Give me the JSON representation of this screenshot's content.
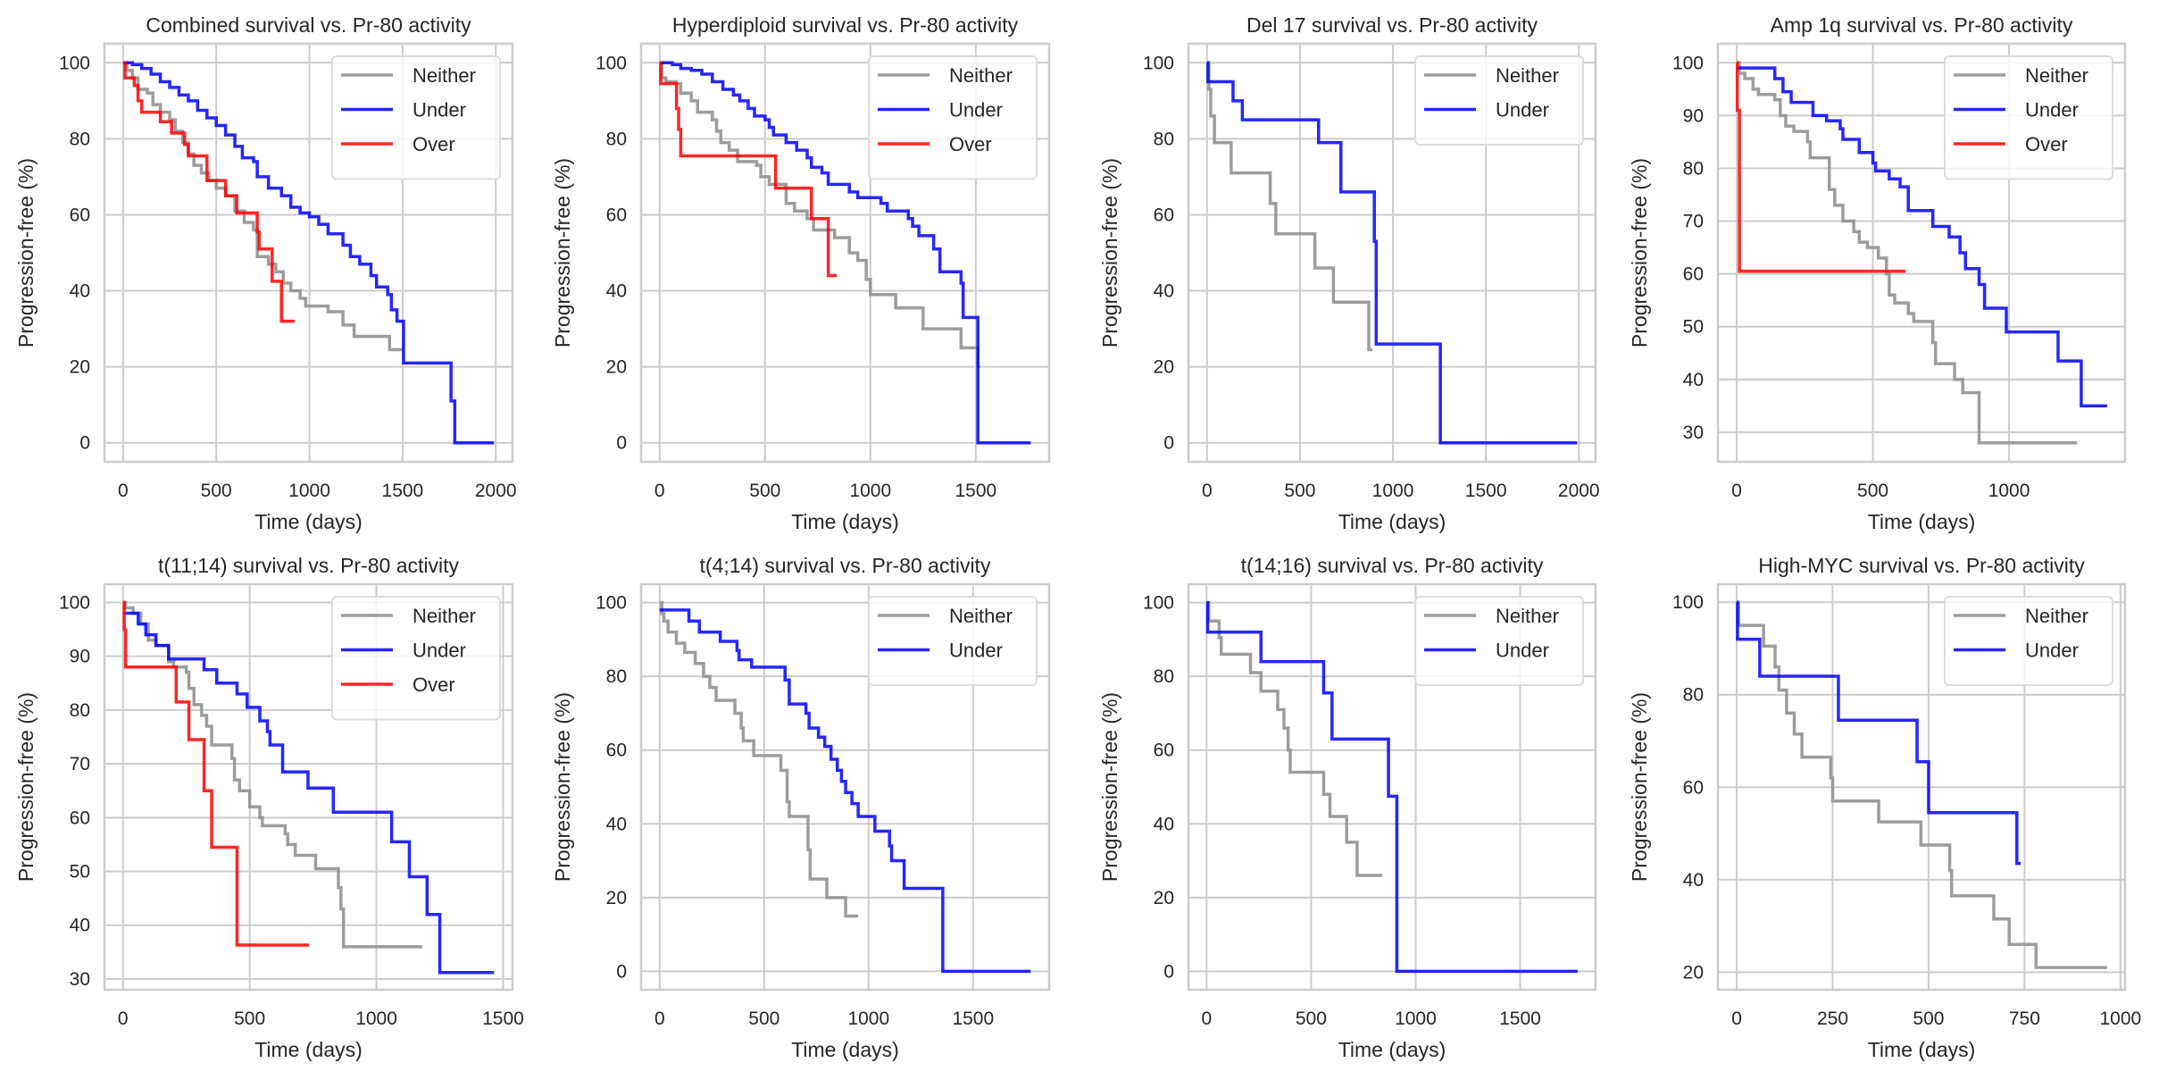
{
  "colors": {
    "Neither": "#8c8c8c",
    "Under": "#0000ff",
    "Over": "#ff0000"
  },
  "chart_data": [
    {
      "type": "line",
      "step": true,
      "legend": "top-right",
      "title": "Combined survival vs. Pr-80 activity",
      "xlabel": "Time (days)",
      "ylabel": "Progression-free (%)",
      "xlim": [
        -100,
        2090
      ],
      "ylim": [
        -5,
        105
      ],
      "xticks": [
        0,
        500,
        1000,
        1500,
        2000
      ],
      "yticks": [
        0,
        20,
        40,
        60,
        80,
        100
      ],
      "series": [
        {
          "name": "Neither",
          "t": [
            0,
            20,
            50,
            80,
            130,
            160,
            200,
            250,
            280,
            320,
            350,
            380,
            420,
            460,
            500,
            550,
            600,
            650,
            700,
            720,
            780,
            820,
            860,
            900,
            950,
            980,
            1100,
            1180,
            1240,
            1430,
            1500
          ],
          "s": [
            100,
            98,
            96,
            93,
            92,
            89,
            87,
            85,
            82,
            79,
            76,
            73,
            71,
            69,
            67,
            65,
            61,
            58,
            56,
            49,
            47,
            45,
            42,
            40,
            38,
            36,
            34.5,
            31,
            28,
            24.5,
            24.5
          ]
        },
        {
          "name": "Under",
          "t": [
            0,
            50,
            100,
            150,
            200,
            250,
            300,
            350,
            400,
            450,
            500,
            550,
            600,
            640,
            700,
            720,
            780,
            850,
            900,
            950,
            1000,
            1050,
            1100,
            1180,
            1220,
            1270,
            1330,
            1360,
            1420,
            1440,
            1470,
            1505,
            1760,
            1780,
            1990
          ],
          "s": [
            100,
            99.5,
            98.5,
            97,
            95,
            93.5,
            91.5,
            90,
            87.5,
            85.5,
            83.5,
            81,
            78,
            75,
            74,
            70,
            67,
            65,
            62,
            60.5,
            59.5,
            57.5,
            55,
            52,
            49,
            47,
            44,
            41,
            39,
            35,
            32,
            21,
            11,
            0,
            0
          ]
        },
        {
          "name": "Over",
          "t": [
            0,
            10,
            60,
            80,
            100,
            200,
            260,
            330,
            350,
            450,
            550,
            610,
            720,
            730,
            800,
            850,
            920
          ],
          "s": [
            100,
            96,
            94,
            90,
            87,
            84.5,
            81.5,
            78.5,
            75.5,
            69,
            65,
            60.5,
            55.5,
            51,
            42.5,
            32,
            32
          ]
        }
      ]
    },
    {
      "type": "line",
      "step": true,
      "legend": "top-right",
      "title": "Hyperdiploid survival vs. Pr-80 activity",
      "xlabel": "Time (days)",
      "ylabel": "Progression-free (%)",
      "xlim": [
        -88,
        1848
      ],
      "ylim": [
        -5,
        105
      ],
      "xticks": [
        0,
        500,
        1000,
        1500
      ],
      "yticks": [
        0,
        20,
        40,
        60,
        80,
        100
      ],
      "series": [
        {
          "name": "Neither",
          "t": [
            0,
            10,
            30,
            80,
            100,
            150,
            180,
            250,
            270,
            290,
            330,
            370,
            460,
            480,
            520,
            600,
            640,
            700,
            730,
            830,
            900,
            940,
            980,
            1000,
            1120,
            1250,
            1430,
            1510,
            1520
          ],
          "s": [
            100,
            96,
            95,
            94.5,
            92,
            90,
            87,
            85,
            82,
            79,
            77,
            74,
            73,
            70,
            68,
            63,
            61,
            59,
            56,
            54,
            50,
            48,
            43,
            39,
            35.5,
            30,
            25,
            20,
            20
          ]
        },
        {
          "name": "Under",
          "t": [
            0,
            60,
            100,
            150,
            200,
            250,
            300,
            350,
            380,
            420,
            450,
            500,
            520,
            540,
            600,
            650,
            700,
            720,
            770,
            800,
            900,
            940,
            1050,
            1080,
            1180,
            1200,
            1230,
            1300,
            1330,
            1430,
            1440,
            1510,
            1760
          ],
          "s": [
            100,
            99.5,
            98.5,
            98,
            97,
            95,
            93,
            91.5,
            90,
            88,
            86,
            85,
            83,
            81,
            79,
            77,
            75,
            72.5,
            71,
            68,
            66,
            64.5,
            63,
            61,
            59,
            57,
            54.5,
            51,
            45,
            42,
            33,
            0,
            0
          ]
        },
        {
          "name": "Over",
          "t": [
            0,
            5,
            80,
            90,
            100,
            550,
            720,
            800,
            840
          ],
          "s": [
            100,
            94.5,
            88,
            82.5,
            75.5,
            67,
            59,
            44,
            44
          ]
        }
      ]
    },
    {
      "type": "line",
      "step": true,
      "legend": "top-right",
      "title": "Del 17 survival vs. Pr-80 activity",
      "xlabel": "Time (days)",
      "ylabel": "Progression-free (%)",
      "xlim": [
        -100,
        2090
      ],
      "ylim": [
        -5,
        105
      ],
      "xticks": [
        0,
        500,
        1000,
        1500,
        2000
      ],
      "yticks": [
        0,
        20,
        40,
        60,
        80,
        100
      ],
      "series": [
        {
          "name": "Neither",
          "t": [
            0,
            10,
            20,
            40,
            130,
            340,
            370,
            580,
            680,
            870,
            890
          ],
          "s": [
            100,
            93,
            86,
            79,
            71,
            63,
            55,
            46,
            37,
            24.5,
            24.5
          ]
        },
        {
          "name": "Under",
          "t": [
            0,
            5,
            140,
            190,
            600,
            720,
            900,
            910,
            1255,
            1990
          ],
          "s": [
            100,
            95,
            90,
            85,
            79,
            66,
            53,
            26,
            0,
            0
          ]
        }
      ]
    },
    {
      "type": "line",
      "step": true,
      "legend": "top-right",
      "title": "Amp 1q survival vs. Pr-80 activity",
      "xlabel": "Time (days)",
      "ylabel": "Progression-free (%)",
      "xlim": [
        -69,
        1426
      ],
      "ylim": [
        24.4,
        103.6
      ],
      "xticks": [
        0,
        500,
        1000
      ],
      "yticks": [
        30,
        40,
        50,
        60,
        70,
        80,
        90,
        100
      ],
      "series": [
        {
          "name": "Neither",
          "t": [
            0,
            10,
            30,
            60,
            80,
            140,
            160,
            180,
            210,
            260,
            270,
            340,
            360,
            390,
            430,
            450,
            480,
            520,
            550,
            560,
            580,
            630,
            650,
            720,
            730,
            800,
            830,
            890,
            1250
          ],
          "s": [
            100,
            98,
            97,
            95,
            94,
            93,
            90,
            88,
            87,
            85,
            82,
            76,
            73,
            70,
            68,
            66,
            65,
            63,
            60,
            56,
            54.5,
            52.5,
            51,
            47,
            43,
            40,
            37.5,
            28,
            28
          ]
        },
        {
          "name": "Under",
          "t": [
            0,
            140,
            170,
            200,
            280,
            330,
            380,
            390,
            450,
            500,
            510,
            560,
            600,
            630,
            720,
            780,
            820,
            840,
            890,
            910,
            990,
            1180,
            1265,
            1360
          ],
          "s": [
            99,
            97,
            94.5,
            92.5,
            90,
            89,
            87.5,
            85.5,
            83,
            81,
            79.5,
            78,
            76.5,
            72,
            69,
            67,
            64,
            61,
            58,
            53.5,
            49,
            43.5,
            35,
            35
          ]
        },
        {
          "name": "Over",
          "t": [
            0,
            2,
            10,
            620
          ],
          "s": [
            100,
            91,
            60.5,
            60.5
          ]
        }
      ]
    },
    {
      "type": "line",
      "step": true,
      "legend": "top-right",
      "title": "t(11;14) survival vs. Pr-80 activity",
      "xlabel": "Time (days)",
      "ylabel": "Progression-free (%)",
      "xlim": [
        -73,
        1537
      ],
      "ylim": [
        28,
        103.4
      ],
      "xticks": [
        0,
        500,
        1000,
        1500
      ],
      "yticks": [
        30,
        40,
        50,
        60,
        70,
        80,
        90,
        100
      ],
      "series": [
        {
          "name": "Neither",
          "t": [
            0,
            10,
            40,
            70,
            100,
            130,
            180,
            200,
            250,
            260,
            280,
            310,
            330,
            350,
            430,
            440,
            460,
            500,
            540,
            550,
            640,
            650,
            680,
            760,
            850,
            860,
            870,
            1180
          ],
          "s": [
            100,
            99,
            98,
            96,
            93,
            92,
            89,
            88,
            87,
            84,
            81,
            79,
            77,
            73.5,
            71,
            67,
            65,
            62,
            60,
            58.5,
            57,
            55,
            53,
            50.5,
            47,
            43,
            36,
            36
          ]
        },
        {
          "name": "Under",
          "t": [
            0,
            60,
            90,
            130,
            180,
            320,
            370,
            450,
            490,
            540,
            570,
            580,
            630,
            730,
            830,
            1060,
            1130,
            1200,
            1250,
            1464
          ],
          "s": [
            98,
            96,
            94,
            92,
            89.5,
            87.5,
            85,
            83,
            80.5,
            78,
            76,
            73.5,
            68.5,
            65.5,
            61,
            55.5,
            49,
            42,
            31.2,
            31.2
          ]
        },
        {
          "name": "Over",
          "t": [
            0,
            5,
            10,
            210,
            260,
            320,
            350,
            450,
            735
          ],
          "s": [
            100,
            95,
            88,
            81.5,
            74.5,
            65,
            54.5,
            36.3,
            36.3
          ]
        }
      ]
    },
    {
      "type": "line",
      "step": true,
      "legend": "top-right",
      "title": "t(4;14) survival vs. Pr-80 activity",
      "xlabel": "Time (days)",
      "ylabel": "Progression-free (%)",
      "xlim": [
        -89,
        1864
      ],
      "ylim": [
        -5,
        105
      ],
      "xticks": [
        0,
        500,
        1000,
        1500
      ],
      "yticks": [
        0,
        20,
        40,
        60,
        80,
        100
      ],
      "series": [
        {
          "name": "Neither",
          "t": [
            0,
            10,
            20,
            40,
            80,
            120,
            170,
            210,
            240,
            270,
            360,
            390,
            400,
            450,
            580,
            610,
            620,
            710,
            720,
            800,
            890,
            950
          ],
          "s": [
            100,
            97,
            95,
            92,
            89,
            86.5,
            83.5,
            80,
            77,
            73.5,
            70,
            66,
            62.5,
            58.5,
            54.5,
            46,
            42,
            33,
            25,
            20,
            15,
            15
          ]
        },
        {
          "name": "Under",
          "t": [
            0,
            140,
            190,
            290,
            370,
            380,
            440,
            600,
            620,
            700,
            715,
            760,
            790,
            820,
            850,
            870,
            890,
            920,
            950,
            1030,
            1100,
            1110,
            1170,
            1355,
            1775
          ],
          "s": [
            98,
            95,
            92,
            89.5,
            87,
            84.5,
            82.5,
            79,
            72.5,
            70,
            66,
            63.5,
            61,
            57.5,
            54.5,
            51.5,
            48.5,
            45.5,
            42,
            38,
            34,
            30,
            22.5,
            0,
            0
          ]
        }
      ]
    },
    {
      "type": "line",
      "step": true,
      "legend": "top-right",
      "title": "t(14;16) survival vs. Pr-80 activity",
      "xlabel": "Time (days)",
      "ylabel": "Progression-free (%)",
      "xlim": [
        -87,
        1861
      ],
      "ylim": [
        -5,
        105
      ],
      "xticks": [
        0,
        500,
        1000,
        1500
      ],
      "yticks": [
        0,
        20,
        40,
        60,
        80,
        100
      ],
      "series": [
        {
          "name": "Neither",
          "t": [
            0,
            10,
            60,
            70,
            210,
            260,
            340,
            370,
            390,
            400,
            560,
            590,
            670,
            720,
            840
          ],
          "s": [
            100,
            95,
            90.5,
            86,
            81,
            76,
            71,
            66,
            60,
            54,
            48,
            42,
            35,
            26,
            26
          ]
        },
        {
          "name": "Under",
          "t": [
            0,
            5,
            260,
            560,
            600,
            870,
            910,
            1775
          ],
          "s": [
            100,
            92,
            84,
            75.5,
            63,
            47.5,
            0,
            0
          ]
        }
      ]
    },
    {
      "type": "line",
      "step": true,
      "legend": "top-right",
      "title": "High-MYC survival vs. Pr-80 activity",
      "xlabel": "Time (days)",
      "ylabel": "Progression-free (%)",
      "xlim": [
        -49,
        1012
      ],
      "ylim": [
        16.2,
        103.9
      ],
      "xticks": [
        0,
        250,
        500,
        750,
        1000
      ],
      "yticks": [
        20,
        40,
        60,
        80,
        100
      ],
      "series": [
        {
          "name": "Neither",
          "t": [
            0,
            5,
            70,
            100,
            110,
            130,
            150,
            170,
            245,
            250,
            370,
            480,
            555,
            560,
            670,
            710,
            780,
            965
          ],
          "s": [
            100,
            95,
            90.5,
            86,
            81,
            76,
            71.5,
            66.5,
            62,
            57,
            52.5,
            47.5,
            42,
            36.5,
            31.5,
            26,
            21,
            21
          ]
        },
        {
          "name": "Under",
          "t": [
            0,
            2,
            60,
            265,
            470,
            500,
            730,
            740
          ],
          "s": [
            100,
            92,
            84,
            74.5,
            65.5,
            54.5,
            43.5,
            43.5
          ]
        }
      ]
    }
  ]
}
